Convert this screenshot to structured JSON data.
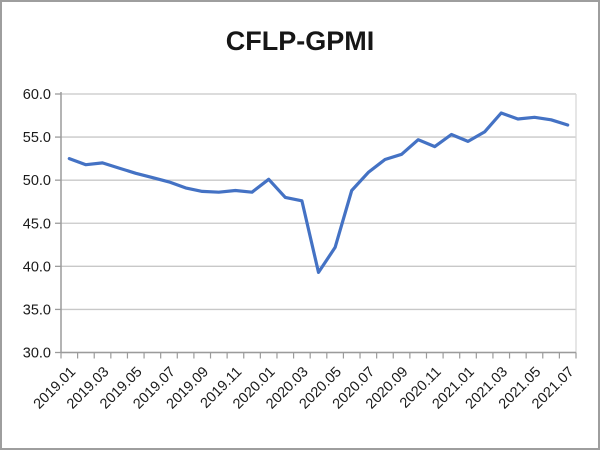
{
  "chart_data": {
    "type": "line",
    "title": "CFLP-GPMI",
    "categories": [
      "2019.01",
      "2019.02",
      "2019.03",
      "2019.04",
      "2019.05",
      "2019.06",
      "2019.07",
      "2019.08",
      "2019.09",
      "2019.10",
      "2019.11",
      "2019.12",
      "2020.01",
      "2020.02",
      "2020.03",
      "2020.04",
      "2020.05",
      "2020.06",
      "2020.07",
      "2020.08",
      "2020.09",
      "2020.10",
      "2020.11",
      "2020.12",
      "2021.01",
      "2021.02",
      "2021.03",
      "2021.04",
      "2021.05",
      "2021.06",
      "2021.07"
    ],
    "series": [
      {
        "name": "CFLP-GPMI",
        "values": [
          52.5,
          51.8,
          52.0,
          51.4,
          50.8,
          50.3,
          49.8,
          49.1,
          48.7,
          48.6,
          48.8,
          48.6,
          50.1,
          48.0,
          47.6,
          39.3,
          42.2,
          48.8,
          50.9,
          52.4,
          53.0,
          54.7,
          53.9,
          55.3,
          54.5,
          55.6,
          57.8,
          57.1,
          57.3,
          57.0,
          56.4
        ]
      }
    ],
    "xlabel": "",
    "ylabel": "",
    "ylim": [
      30,
      60
    ],
    "y_tick_step": 5,
    "y_tick_labels": [
      "60.0",
      "55.0",
      "50.0",
      "45.0",
      "40.0",
      "35.0",
      "30.0"
    ],
    "x_tick_label_every": 2,
    "x_label_rotation_deg": -45,
    "grid": "horizontal",
    "legend_position": "none",
    "colors": {
      "line": "#4472C4",
      "grid": "#c8c8c8",
      "axis": "#9b9b9b",
      "plot_right_border": "#d6d6d6",
      "text": "#1a1a1a",
      "frame_border": "#9e9e9e"
    }
  }
}
